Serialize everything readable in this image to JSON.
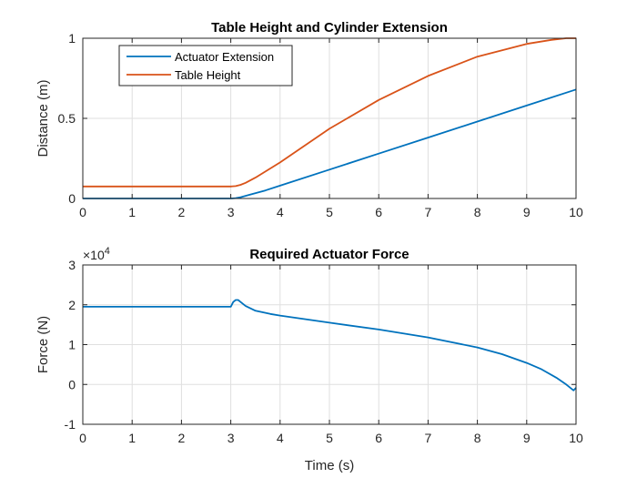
{
  "chart_data": [
    {
      "type": "line",
      "title": "Table Height and Cylinder Extension",
      "xlabel": "",
      "ylabel": "Distance (m)",
      "xlim": [
        0,
        10
      ],
      "ylim": [
        0,
        1
      ],
      "xticks": [
        0,
        1,
        2,
        3,
        4,
        5,
        6,
        7,
        8,
        9,
        10
      ],
      "yticks": [
        0,
        0.5,
        1
      ],
      "ytick_labels": [
        "0",
        "0.5",
        "1"
      ],
      "grid": true,
      "legend": "top-left",
      "series": [
        {
          "name": "Actuator Extension",
          "color": "#0072BD",
          "x": [
            0,
            1,
            2,
            3,
            3.1,
            3.2,
            3.4,
            3.7,
            4,
            5,
            6,
            7,
            8,
            9,
            10
          ],
          "y": [
            0,
            0,
            0,
            0,
            0.002,
            0.008,
            0.025,
            0.05,
            0.08,
            0.18,
            0.28,
            0.38,
            0.48,
            0.58,
            0.68
          ]
        },
        {
          "name": "Table Height",
          "color": "#D95319",
          "x": [
            0,
            1,
            2,
            3,
            3.1,
            3.2,
            3.3,
            3.5,
            4,
            5,
            6,
            7,
            8,
            9,
            9.5,
            9.8,
            10
          ],
          "y": [
            0.075,
            0.075,
            0.075,
            0.075,
            0.077,
            0.085,
            0.098,
            0.13,
            0.225,
            0.435,
            0.615,
            0.765,
            0.885,
            0.965,
            0.99,
            1.0,
            1.0
          ]
        }
      ]
    },
    {
      "type": "line",
      "title": "Required Actuator Force",
      "xlabel": "Time (s)",
      "ylabel": "Force (N)",
      "xlim": [
        0,
        10
      ],
      "ylim": [
        -1,
        3
      ],
      "xticks": [
        0,
        1,
        2,
        3,
        4,
        5,
        6,
        7,
        8,
        9,
        10
      ],
      "yticks": [
        -1,
        0,
        1,
        2,
        3
      ],
      "ytick_labels": [
        "-1",
        "0",
        "1",
        "2",
        "3"
      ],
      "exponent_label": "×10",
      "exponent_power": "4",
      "grid": true,
      "series": [
        {
          "name": "",
          "color": "#0072BD",
          "x": [
            0,
            1,
            2,
            3,
            3.05,
            3.1,
            3.15,
            3.2,
            3.3,
            3.5,
            3.8,
            4,
            5,
            6,
            7,
            8,
            8.5,
            9,
            9.3,
            9.6,
            9.8,
            9.95,
            10
          ],
          "y": [
            1.95,
            1.95,
            1.95,
            1.95,
            2.07,
            2.12,
            2.12,
            2.07,
            1.97,
            1.85,
            1.77,
            1.73,
            1.55,
            1.38,
            1.18,
            0.93,
            0.76,
            0.54,
            0.38,
            0.17,
            0.0,
            -0.15,
            -0.08
          ]
        }
      ]
    }
  ]
}
